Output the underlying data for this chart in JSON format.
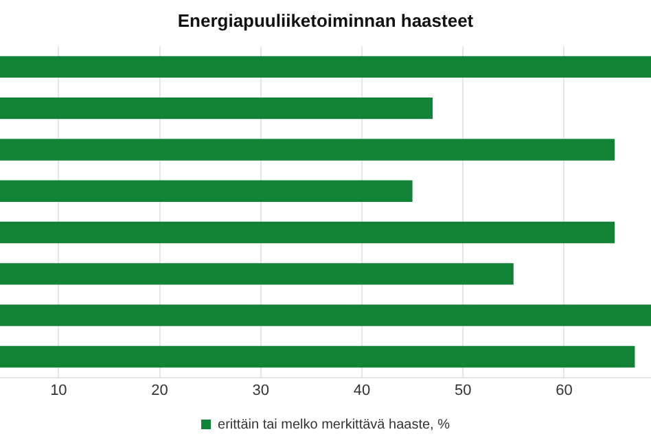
{
  "chart_data": {
    "type": "bar",
    "orientation": "horizontal",
    "title": "Energiapuuliiketoiminnan haasteet",
    "categories": [
      null,
      null,
      null,
      null,
      null,
      null,
      null,
      null
    ],
    "series": [
      {
        "name": "erittäin tai melko merkittävä haaste, %",
        "color": "#118236",
        "values": [
          68.6,
          47,
          65,
          45,
          65,
          55,
          68.6,
          67
        ]
      }
    ],
    "xlim": [
      4.2,
      68.6
    ],
    "xticks": [
      10,
      20,
      30,
      40,
      50,
      60
    ],
    "grid": "x",
    "legend": "bottom",
    "tick_labels": "x"
  }
}
